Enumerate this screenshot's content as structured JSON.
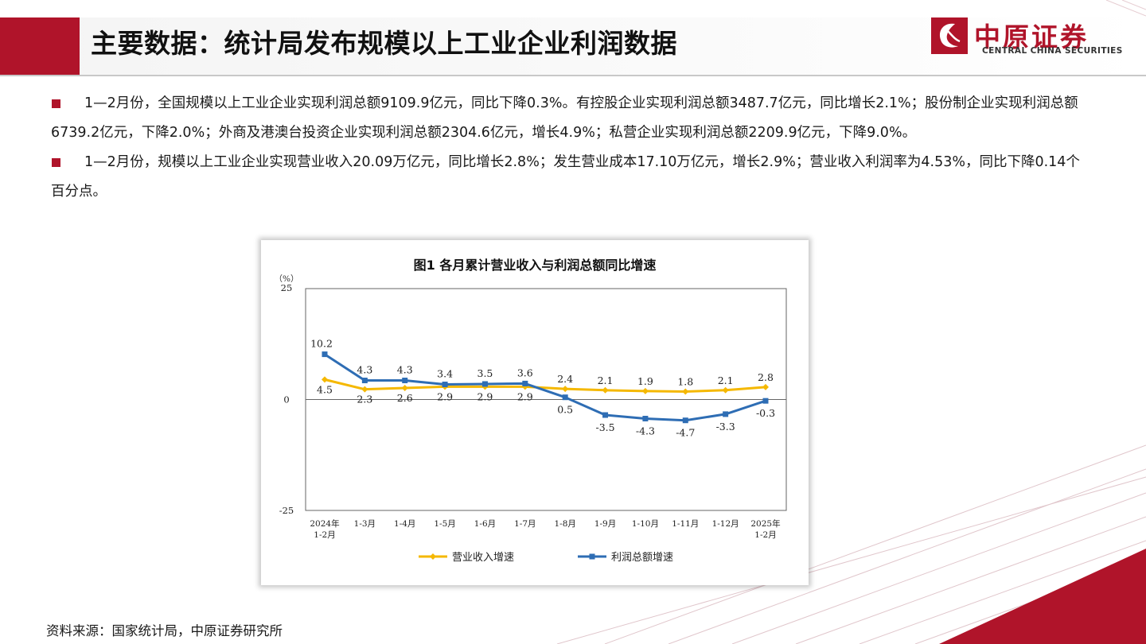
{
  "header": {
    "title": "主要数据：统计局发布规模以上工业企业利润数据"
  },
  "logo": {
    "cn": "中原证券",
    "en": "CENTRAL CHINA SECURITIES",
    "color": "#b0142a"
  },
  "bullets": [
    "1—2月份，全国规模以上工业企业实现利润总额9109.9亿元，同比下降0.3%。有控股企业实现利润总额3487.7亿元，同比增长2.1%；股份制企业实现利润总额6739.2亿元，下降2.0%；外商及港澳台投资企业实现利润总额2304.6亿元，增长4.9%；私营企业实现利润总额2209.9亿元，下降9.0%。",
    "1—2月份，规模以上工业企业实现营业收入20.09万亿元，同比增长2.8%；发生营业成本17.10万亿元，增长2.9%；营业收入利润率为4.53%，同比下降0.14个百分点。"
  ],
  "source": "资料来源：国家统计局，中原证券研究所",
  "chart_data": {
    "type": "line",
    "title": "图1  各月累计营业收入与利润总额同比增速",
    "ylabel": "（%）",
    "ylim": [
      -25,
      25
    ],
    "yticks": [
      "25",
      "0",
      "-25"
    ],
    "categories": [
      [
        "2024年",
        "1-2月"
      ],
      [
        "1-3月"
      ],
      [
        "1-4月"
      ],
      [
        "1-5月"
      ],
      [
        "1-6月"
      ],
      [
        "1-7月"
      ],
      [
        "1-8月"
      ],
      [
        "1-9月"
      ],
      [
        "1-10月"
      ],
      [
        "1-11月"
      ],
      [
        "1-12月"
      ],
      [
        "2025年",
        "1-2月"
      ]
    ],
    "series": [
      {
        "name": "营业收入增速",
        "color": "#f5b800",
        "values": [
          4.5,
          2.3,
          2.6,
          2.9,
          2.9,
          2.9,
          2.4,
          2.1,
          1.9,
          1.8,
          2.1,
          2.8
        ],
        "labels": [
          "4.5",
          "2.3",
          "2.6",
          "2.9",
          "2.9",
          "2.9",
          "2.4",
          "2.1",
          "1.9",
          "1.8",
          "2.1",
          "2.8"
        ]
      },
      {
        "name": "利润总额增速",
        "color": "#2e6db4",
        "values": [
          10.2,
          4.3,
          4.3,
          3.4,
          3.5,
          3.6,
          0.5,
          -3.5,
          -4.3,
          -4.7,
          -3.3,
          -0.3
        ],
        "labels": [
          "10.2",
          "4.3",
          "4.3",
          "3.4",
          "3.5",
          "3.6",
          "0.5",
          "-3.5",
          "-4.3",
          "-4.7",
          "-3.3",
          "-0.3"
        ]
      }
    ],
    "legend": "bottom",
    "grid": false
  }
}
